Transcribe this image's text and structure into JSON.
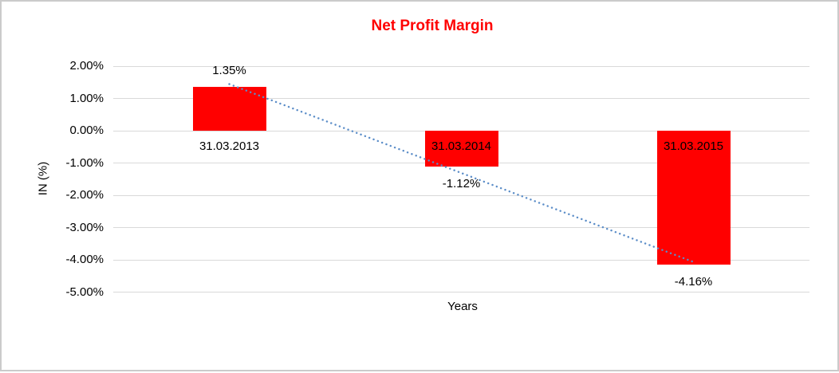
{
  "chart_data": {
    "type": "bar",
    "title": "Net Profit Margin",
    "title_color": "#ff0000",
    "categories": [
      "31.03.2013",
      "31.03.2014",
      "31.03.2015"
    ],
    "values": [
      1.35,
      -1.12,
      -4.16
    ],
    "data_labels": [
      "1.35%",
      "-1.12%",
      "-4.16%"
    ],
    "xlabel": "Years",
    "ylabel": "IN (%)",
    "ylim": [
      -5,
      2
    ],
    "ytick_step": 1,
    "ytick_labels": [
      "2.00%",
      "1.00%",
      "0.00%",
      "-1.00%",
      "-2.00%",
      "-3.00%",
      "-4.00%",
      "-5.00%"
    ],
    "grid": true,
    "legend": "none",
    "bar_color": "#ff0000",
    "gridline_color": "#d9d9d9",
    "trendline": {
      "type": "linear",
      "style": "dotted",
      "color": "#5b8dc8"
    }
  }
}
